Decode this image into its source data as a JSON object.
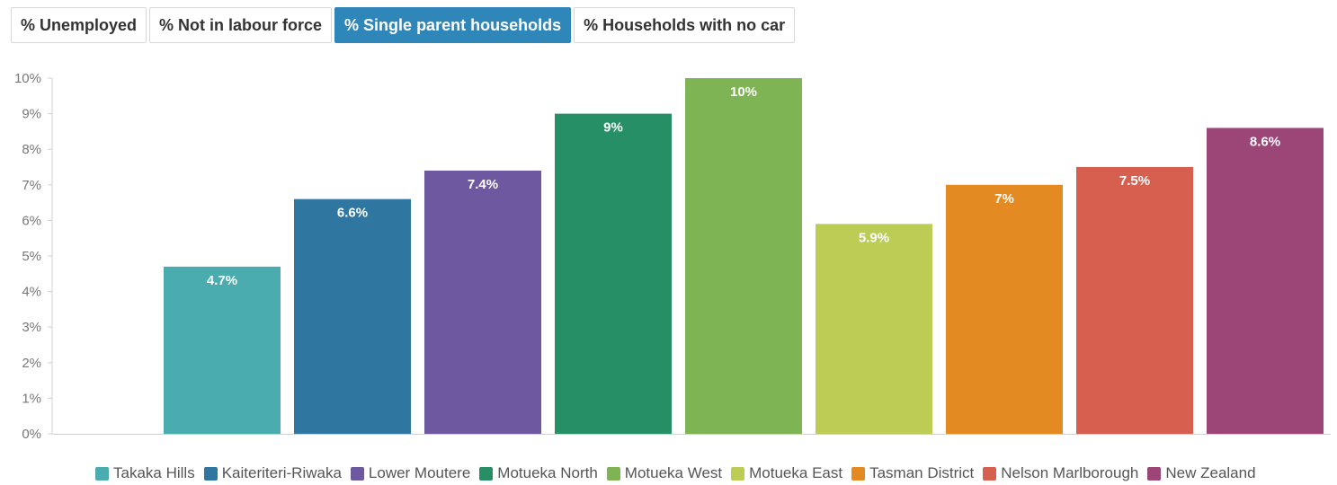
{
  "tabs": [
    {
      "label": "% Unemployed",
      "active": false
    },
    {
      "label": "% Not in labour force",
      "active": false
    },
    {
      "label": "% Single parent households",
      "active": true
    },
    {
      "label": "% Households with no car",
      "active": false
    }
  ],
  "chart_data": {
    "type": "bar",
    "categories": [
      "Takaka Hills",
      "Kaiteriteri-Riwaka",
      "Lower Moutere",
      "Motueka North",
      "Motueka West",
      "Motueka East",
      "Tasman District",
      "Nelson Marlborough",
      "New Zealand"
    ],
    "values": [
      4.7,
      6.6,
      7.4,
      9,
      10,
      5.9,
      7,
      7.5,
      8.6
    ],
    "data_labels": [
      "4.7%",
      "6.6%",
      "7.4%",
      "9%",
      "10%",
      "5.9%",
      "7%",
      "7.5%",
      "8.6%"
    ],
    "colors": [
      "#4aacaf",
      "#2f77a0",
      "#6e58a0",
      "#268f66",
      "#7fb455",
      "#bccc55",
      "#e38a22",
      "#d65f50",
      "#9c4577"
    ],
    "ylim": [
      0,
      10
    ],
    "yticks": [
      0,
      1,
      2,
      3,
      4,
      5,
      6,
      7,
      8,
      9,
      10
    ],
    "ytick_labels": [
      "0%",
      "1%",
      "2%",
      "3%",
      "4%",
      "5%",
      "6%",
      "7%",
      "8%",
      "9%",
      "10%"
    ],
    "title": "",
    "xlabel": "",
    "ylabel": "",
    "grid": false,
    "legend_position": "bottom"
  }
}
